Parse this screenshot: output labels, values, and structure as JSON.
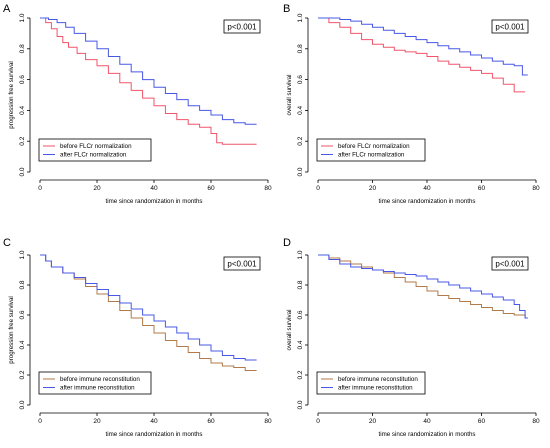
{
  "chart_data": [
    {
      "panel": "A",
      "type": "line",
      "step": true,
      "xlabel": "time since randomization in months",
      "ylabel": "progression free survival",
      "xlim": [
        0,
        80
      ],
      "ylim": [
        0,
        1
      ],
      "xticks": [
        "0",
        "20",
        "40",
        "60",
        "80"
      ],
      "yticks": [
        "0.0",
        "0.2",
        "0.4",
        "0.6",
        "0.8",
        "1.0"
      ],
      "pvalue": "p<0.001",
      "legend_position": "bottom-left",
      "series": [
        {
          "name": "before FLCr normalization",
          "color": "#f0556a",
          "x": [
            0,
            2,
            4,
            6,
            8,
            10,
            13,
            16,
            20,
            24,
            28,
            32,
            36,
            40,
            44,
            48,
            52,
            56,
            60,
            62,
            64,
            76
          ],
          "y": [
            1.0,
            0.97,
            0.93,
            0.88,
            0.84,
            0.81,
            0.77,
            0.73,
            0.69,
            0.64,
            0.58,
            0.53,
            0.48,
            0.43,
            0.38,
            0.34,
            0.31,
            0.29,
            0.25,
            0.19,
            0.18,
            0.18
          ]
        },
        {
          "name": "after FLCr normalization",
          "color": "#4858e6",
          "x": [
            0,
            3,
            6,
            9,
            12,
            16,
            20,
            24,
            28,
            32,
            36,
            40,
            44,
            48,
            52,
            56,
            60,
            64,
            68,
            72,
            76
          ],
          "y": [
            1.0,
            0.99,
            0.97,
            0.94,
            0.9,
            0.85,
            0.8,
            0.75,
            0.7,
            0.65,
            0.6,
            0.55,
            0.51,
            0.47,
            0.43,
            0.4,
            0.37,
            0.34,
            0.32,
            0.31,
            0.31
          ]
        }
      ]
    },
    {
      "panel": "B",
      "type": "line",
      "step": true,
      "xlabel": "time since randomization in months",
      "ylabel": "overall survival",
      "xlim": [
        0,
        80
      ],
      "ylim": [
        0,
        1
      ],
      "xticks": [
        "0",
        "20",
        "40",
        "60",
        "80"
      ],
      "yticks": [
        "0.0",
        "0.2",
        "0.4",
        "0.6",
        "0.8",
        "1.0"
      ],
      "pvalue": "p<0.001",
      "legend_position": "bottom-left",
      "series": [
        {
          "name": "before FLCr normalization",
          "color": "#f0556a",
          "x": [
            0,
            4,
            8,
            12,
            16,
            20,
            24,
            28,
            32,
            36,
            40,
            44,
            48,
            52,
            56,
            60,
            64,
            68,
            72,
            76
          ],
          "y": [
            1.0,
            0.97,
            0.94,
            0.9,
            0.86,
            0.83,
            0.81,
            0.79,
            0.78,
            0.77,
            0.75,
            0.72,
            0.7,
            0.68,
            0.66,
            0.64,
            0.61,
            0.57,
            0.52,
            0.52
          ]
        },
        {
          "name": "after FLCr normalization",
          "color": "#4858e6",
          "x": [
            0,
            4,
            8,
            12,
            16,
            20,
            24,
            28,
            32,
            36,
            40,
            44,
            48,
            52,
            56,
            60,
            64,
            68,
            72,
            75,
            77
          ],
          "y": [
            1.0,
            1.0,
            0.99,
            0.98,
            0.96,
            0.94,
            0.92,
            0.9,
            0.88,
            0.86,
            0.84,
            0.82,
            0.8,
            0.78,
            0.76,
            0.74,
            0.72,
            0.7,
            0.69,
            0.63,
            0.63
          ]
        }
      ]
    },
    {
      "panel": "C",
      "type": "line",
      "step": true,
      "xlabel": "time since randomization in months",
      "ylabel": "progression free survival",
      "xlim": [
        0,
        80
      ],
      "ylim": [
        0,
        1
      ],
      "xticks": [
        "0",
        "20",
        "40",
        "60",
        "80"
      ],
      "yticks": [
        "0.0",
        "0.2",
        "0.4",
        "0.6",
        "0.8",
        "1.0"
      ],
      "pvalue": "p<0.001",
      "legend_position": "bottom-left",
      "series": [
        {
          "name": "before immune reconstitution",
          "color": "#b07a4a",
          "x": [
            0,
            2,
            4,
            8,
            12,
            16,
            20,
            24,
            28,
            32,
            36,
            40,
            44,
            48,
            52,
            56,
            60,
            64,
            68,
            72,
            76
          ],
          "y": [
            1.0,
            0.96,
            0.92,
            0.88,
            0.84,
            0.79,
            0.74,
            0.69,
            0.63,
            0.58,
            0.53,
            0.48,
            0.43,
            0.39,
            0.35,
            0.31,
            0.28,
            0.26,
            0.25,
            0.23,
            0.23
          ]
        },
        {
          "name": "after immune reconstitution",
          "color": "#4858e6",
          "x": [
            0,
            2,
            4,
            8,
            12,
            16,
            20,
            24,
            28,
            32,
            36,
            40,
            44,
            48,
            52,
            56,
            60,
            64,
            68,
            72,
            76
          ],
          "y": [
            1.0,
            0.96,
            0.92,
            0.88,
            0.85,
            0.81,
            0.77,
            0.73,
            0.68,
            0.64,
            0.6,
            0.56,
            0.52,
            0.48,
            0.44,
            0.4,
            0.36,
            0.33,
            0.31,
            0.3,
            0.3
          ]
        }
      ]
    },
    {
      "panel": "D",
      "type": "line",
      "step": true,
      "xlabel": "time since randomization in months",
      "ylabel": "overall survival",
      "xlim": [
        0,
        80
      ],
      "ylim": [
        0,
        1
      ],
      "xticks": [
        "0",
        "20",
        "40",
        "60",
        "80"
      ],
      "yticks": [
        "0.0",
        "0.2",
        "0.4",
        "0.6",
        "0.8",
        "1.0"
      ],
      "pvalue": "p<0.001",
      "legend_position": "bottom-left",
      "series": [
        {
          "name": "before immune reconstitution",
          "color": "#b07a4a",
          "x": [
            0,
            4,
            8,
            12,
            16,
            20,
            24,
            28,
            32,
            36,
            40,
            44,
            48,
            52,
            56,
            60,
            64,
            68,
            72,
            76,
            77
          ],
          "y": [
            1.0,
            0.98,
            0.96,
            0.94,
            0.92,
            0.9,
            0.88,
            0.85,
            0.82,
            0.79,
            0.76,
            0.73,
            0.71,
            0.69,
            0.67,
            0.65,
            0.63,
            0.61,
            0.6,
            0.58,
            0.58
          ]
        },
        {
          "name": "after immune reconstitution",
          "color": "#4858e6",
          "x": [
            0,
            4,
            8,
            12,
            16,
            20,
            24,
            28,
            32,
            36,
            40,
            44,
            48,
            52,
            56,
            60,
            64,
            68,
            72,
            74,
            76,
            77
          ],
          "y": [
            1.0,
            0.97,
            0.94,
            0.92,
            0.91,
            0.9,
            0.89,
            0.88,
            0.87,
            0.86,
            0.84,
            0.82,
            0.8,
            0.78,
            0.76,
            0.74,
            0.72,
            0.7,
            0.67,
            0.63,
            0.58,
            0.58
          ]
        }
      ]
    }
  ]
}
